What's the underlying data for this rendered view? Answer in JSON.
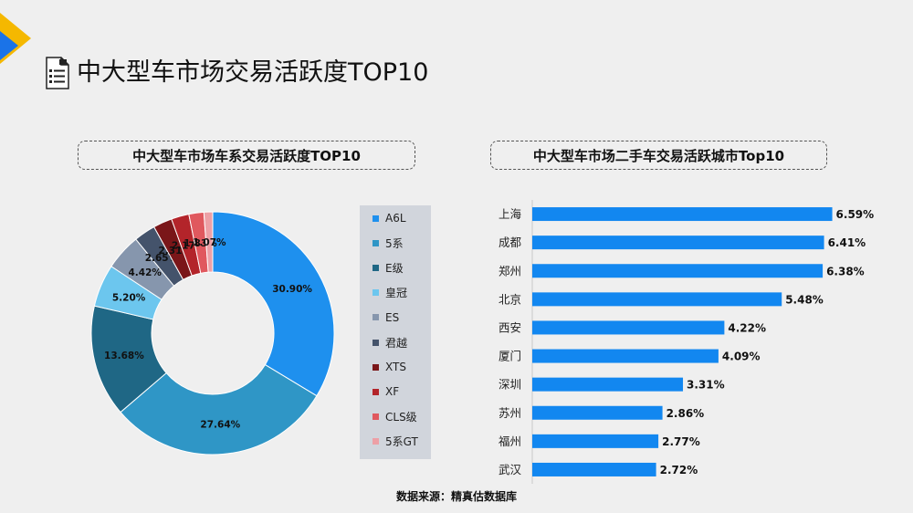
{
  "page": {
    "title": "中大型车市场交易活跃度TOP10",
    "source": "数据来源：精真估数据库"
  },
  "colors": {
    "accent_yellow": "#f5b800",
    "accent_blue": "#1a73e8",
    "bar_blue": "#1287f0"
  },
  "chart_data": [
    {
      "type": "pie",
      "donut": true,
      "title": "中大型车市场车系交易活跃度TOP10",
      "legend_position": "right",
      "categories": [
        "A6L",
        "5系",
        "E级",
        "皇冠",
        "ES",
        "君越",
        "XTS",
        "XF",
        "CLS级",
        "5系GT"
      ],
      "values": [
        30.9,
        27.64,
        13.68,
        5.2,
        4.42,
        2.65,
        2.31,
        2.17,
        1.83,
        1.07
      ],
      "data_labels": [
        "30.90%",
        "27.64%",
        "13.68%",
        "5.20%",
        "4.42%",
        "2.65%",
        "2.31%",
        "2.17%",
        "1.83%",
        "1.07%"
      ],
      "colors": [
        "#1e90ee",
        "#2f96c6",
        "#1f6785",
        "#6cc6ee",
        "#8696ad",
        "#44536b",
        "#7a1619",
        "#b3242a",
        "#e0585e",
        "#eda0a6"
      ]
    },
    {
      "type": "bar",
      "orientation": "horizontal",
      "title": "中大型车市场二手车交易活跃城市Top10",
      "categories": [
        "上海",
        "成都",
        "郑州",
        "北京",
        "西安",
        "厦门",
        "深圳",
        "苏州",
        "福州",
        "武汉"
      ],
      "values": [
        6.59,
        6.41,
        6.38,
        5.48,
        4.22,
        4.09,
        3.31,
        2.86,
        2.77,
        2.72
      ],
      "data_labels": [
        "6.59%",
        "6.41%",
        "6.38%",
        "5.48%",
        "4.22%",
        "4.09%",
        "3.31%",
        "2.86%",
        "2.77%",
        "2.72%"
      ],
      "xlim": [
        0,
        7
      ],
      "color": "#1287f0"
    }
  ]
}
